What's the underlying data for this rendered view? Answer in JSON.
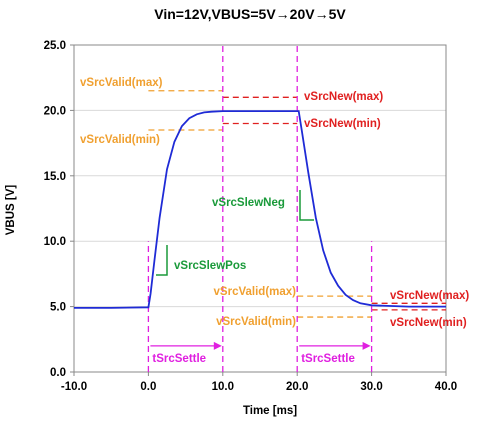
{
  "chart_data": {
    "type": "line",
    "title": "Vin=12V,VBUS=5V→20V→5V",
    "xlabel": "Time [ms]",
    "ylabel": "VBUS [V]",
    "xlim": [
      -10,
      40
    ],
    "ylim": [
      0,
      25
    ],
    "x_ticks": [
      "-10.0",
      "0.0",
      "10.0",
      "20.0",
      "30.0",
      "40.0"
    ],
    "y_ticks": [
      "0.0",
      "5.0",
      "10.0",
      "15.0",
      "20.0",
      "25.0"
    ],
    "grid": "horizontal",
    "legend": "none",
    "series": [
      {
        "color": "#1f2bd6",
        "x": [
          -10,
          -5,
          0,
          0.3,
          0.8,
          1.5,
          2.5,
          3.5,
          4.5,
          5.5,
          6.5,
          7.5,
          8.5,
          10,
          13,
          16,
          19,
          20.2,
          20.6,
          21.5,
          22.5,
          23.5,
          24.5,
          25.5,
          26.5,
          27.5,
          28.5,
          30,
          35,
          40
        ],
        "y": [
          4.9,
          4.9,
          4.95,
          6.0,
          8.5,
          11.8,
          15.5,
          17.6,
          18.8,
          19.4,
          19.7,
          19.85,
          19.9,
          19.95,
          19.95,
          19.95,
          19.95,
          19.95,
          18.5,
          15.2,
          11.8,
          9.3,
          7.6,
          6.6,
          5.9,
          5.5,
          5.25,
          5.1,
          5.0,
          5.0
        ]
      }
    ],
    "hlines": [
      {
        "label": "vSrcValid(max)",
        "y": 21.5,
        "x": [
          0,
          10
        ],
        "color": "#f0a030"
      },
      {
        "label": "vSrcValid(min)",
        "y": 18.5,
        "x": [
          0,
          10
        ],
        "color": "#f0a030"
      },
      {
        "label": "vSrcNew(max)",
        "y": 21.0,
        "x": [
          10,
          20
        ],
        "color": "#e02020"
      },
      {
        "label": "vSrcNew(min)",
        "y": 19.0,
        "x": [
          10,
          20
        ],
        "color": "#e02020"
      },
      {
        "label": "vSrcValid(max)",
        "y": 5.8,
        "x": [
          20,
          30
        ],
        "color": "#f0a030"
      },
      {
        "label": "vSrcValid(min)",
        "y": 4.2,
        "x": [
          20,
          30
        ],
        "color": "#f0a030"
      },
      {
        "label": "vSrcNew(max)",
        "y": 5.25,
        "x": [
          30,
          40
        ],
        "color": "#e02020"
      },
      {
        "label": "vSrcNew(min)",
        "y": 4.75,
        "x": [
          30,
          40
        ],
        "color": "#e02020"
      }
    ],
    "vlines": [
      {
        "x": 0,
        "y": [
          0,
          10
        ],
        "color": "#e020e0"
      },
      {
        "x": 10,
        "y": [
          0,
          25
        ],
        "color": "#e020e0"
      },
      {
        "x": 20,
        "y": [
          0,
          25
        ],
        "color": "#e020e0"
      },
      {
        "x": 30,
        "y": [
          0,
          10
        ],
        "color": "#e020e0"
      }
    ],
    "annotations": [
      {
        "text": "vSrcSlewPos",
        "color": "#1a9a3a"
      },
      {
        "text": "vSrcSlewNeg",
        "color": "#1a9a3a"
      },
      {
        "text": "tSrcSettle",
        "color": "#e020e0",
        "x": [
          0,
          10
        ],
        "y": 2.0
      },
      {
        "text": "tSrcSettle",
        "color": "#e020e0",
        "x": [
          20,
          30
        ],
        "y": 2.0
      }
    ]
  }
}
